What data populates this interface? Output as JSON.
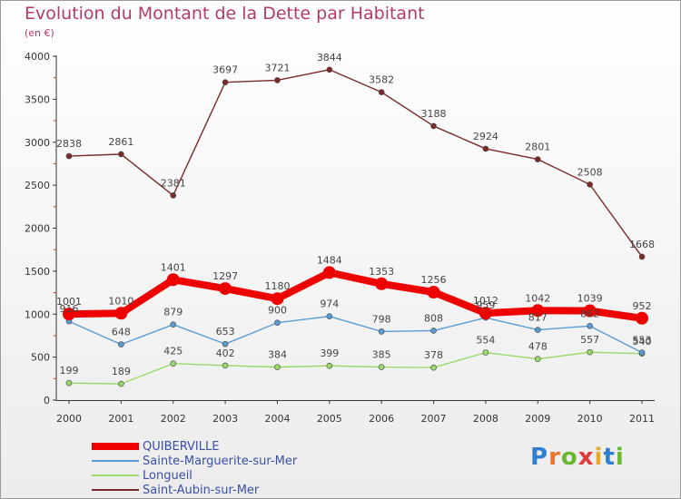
{
  "title": "Evolution du Montant de la Dette par Habitant",
  "subtitle": "(en €)",
  "brand": {
    "text": "Proxiti",
    "letter_colors": [
      "#2f7fd0",
      "#e8762a",
      "#6ab830",
      "#e03a3a",
      "#e8a82a",
      "#2f7fd0",
      "#6ab830"
    ]
  },
  "chart_data": {
    "type": "line",
    "x": [
      "2000",
      "2001",
      "2002",
      "2003",
      "2004",
      "2005",
      "2006",
      "2007",
      "2008",
      "2009",
      "2010",
      "2011"
    ],
    "ylim": [
      0,
      4000
    ],
    "yticks": [
      "0",
      "500",
      "1000",
      "1500",
      "2000",
      "2500",
      "3000",
      "3500",
      "4000"
    ],
    "grid": false,
    "legend": "bottom-left",
    "series": [
      {
        "name": "QUIBERVILLE",
        "color": "#ee0000",
        "values": [
          1001,
          1010,
          1401,
          1297,
          1180,
          1484,
          1353,
          1256,
          1012,
          1042,
          1039,
          952
        ],
        "labels": [
          "1001",
          "1010",
          "1401",
          "1297",
          "1180",
          "1484",
          "1353",
          "1256",
          "1012",
          "1042",
          "1039",
          "952"
        ]
      },
      {
        "name": "Sainte-Marguerite-sur-Mer",
        "color": "#5b9bd5",
        "values": [
          916,
          648,
          879,
          653,
          900,
          974,
          798,
          808,
          959,
          817,
          862,
          553
        ],
        "labels": [
          "916",
          "648",
          "879",
          "653",
          "900",
          "974",
          "798",
          "808",
          "959",
          "817",
          "862",
          "553"
        ]
      },
      {
        "name": "Longueil",
        "color": "#99d96a",
        "values": [
          199,
          189,
          425,
          402,
          384,
          399,
          385,
          378,
          554,
          478,
          557,
          540
        ],
        "labels": [
          "199",
          "189",
          "425",
          "402",
          "384",
          "399",
          "385",
          "378",
          "554",
          "478",
          "557",
          "540"
        ]
      },
      {
        "name": "Saint-Aubin-sur-Mer",
        "color": "#7a2a2a",
        "values": [
          2838,
          2861,
          2381,
          3697,
          3721,
          3844,
          3582,
          3188,
          2924,
          2801,
          2508,
          1668
        ],
        "labels": [
          "2838",
          "2861",
          "2381",
          "3697",
          "3721",
          "3844",
          "3582",
          "3188",
          "2924",
          "2801",
          "2508",
          "1668"
        ]
      }
    ]
  }
}
